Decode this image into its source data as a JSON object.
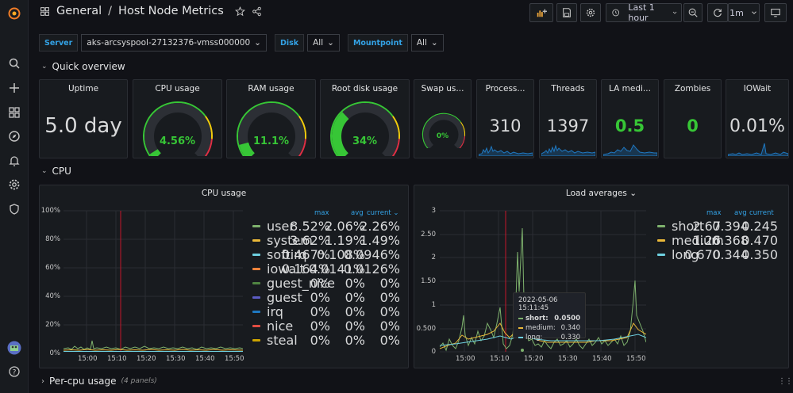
{
  "breadcrumb": {
    "folder": "General",
    "separator": "/",
    "dashboard": "Host Node Metrics"
  },
  "toolbar": {
    "time_range": "Last 1 hour",
    "refresh_interval": "1m"
  },
  "variables": [
    {
      "label": "Server",
      "value": "aks-arcsyspool-27132376-vmss000000"
    },
    {
      "label": "Disk",
      "value": "All"
    },
    {
      "label": "Mountpoint",
      "value": "All"
    }
  ],
  "rows": {
    "quick_overview": "Quick overview",
    "cpu": "CPU",
    "per_cpu": "Per-cpu usage",
    "per_cpu_count": "(4 panels)"
  },
  "stats": {
    "uptime": {
      "title": "Uptime",
      "value": "5.0 day"
    },
    "cpu_usage": {
      "title": "CPU usage",
      "value": "4.56%",
      "fraction": 0.0456
    },
    "ram_usage": {
      "title": "RAM usage",
      "value": "11.1%",
      "fraction": 0.111
    },
    "root_disk": {
      "title": "Root disk usage",
      "value": "34%",
      "fraction": 0.34
    },
    "swap": {
      "title": "Swap us...",
      "value": "0%",
      "fraction": 0
    },
    "processes": {
      "title": "Process...",
      "value": "310"
    },
    "threads": {
      "title": "Threads",
      "value": "1397"
    },
    "la_medium": {
      "title": "LA medi...",
      "value": "0.5"
    },
    "zombies": {
      "title": "Zombies",
      "value": "0"
    },
    "iowait": {
      "title": "IOWait",
      "value": "0.01%"
    }
  },
  "cpu_panel": {
    "title": "CPU usage",
    "legend_headers": {
      "max": "max",
      "avg": "avg",
      "current": "current"
    },
    "legend": [
      {
        "name": "user",
        "color": "#7eb26d",
        "max": "8.52%",
        "avg": "2.06%",
        "current": "2.26%"
      },
      {
        "name": "system",
        "color": "#eab839",
        "max": "3.62%",
        "avg": "1.19%",
        "current": "1.49%"
      },
      {
        "name": "softirq",
        "color": "#6ed0e0",
        "max": "0.467%",
        "avg": "0.108%",
        "current": "0.0946%"
      },
      {
        "name": "iowait",
        "color": "#ef843c",
        "max": "0.164%",
        "avg": "0.0141%",
        "current": "0.0126%"
      },
      {
        "name": "guest_nice",
        "color": "#508642",
        "max": "0%",
        "avg": "0%",
        "current": "0%"
      },
      {
        "name": "guest",
        "color": "#5c5cc4",
        "max": "0%",
        "avg": "0%",
        "current": "0%"
      },
      {
        "name": "irq",
        "color": "#1f78c1",
        "max": "0%",
        "avg": "0%",
        "current": "0%"
      },
      {
        "name": "nice",
        "color": "#e24d42",
        "max": "0%",
        "avg": "0%",
        "current": "0%"
      },
      {
        "name": "steal",
        "color": "#cca300",
        "max": "0%",
        "avg": "0%",
        "current": "0%"
      }
    ],
    "y_ticks": [
      "100%",
      "80%",
      "60%",
      "40%",
      "20%",
      "0%"
    ],
    "x_ticks": [
      "15:00",
      "15:10",
      "15:20",
      "15:30",
      "15:40",
      "15:50"
    ]
  },
  "load_panel": {
    "title": "Load averages",
    "legend_headers": {
      "max": "max",
      "avg": "avg",
      "current": "current"
    },
    "legend": [
      {
        "name": "short",
        "color": "#7eb26d",
        "max": "2.67",
        "avg": "0.394",
        "current": "0.245"
      },
      {
        "name": "medium",
        "color": "#eab839",
        "max": "1.26",
        "avg": "0.368",
        "current": "0.470"
      },
      {
        "name": "long",
        "color": "#6ed0e0",
        "max": "0.670",
        "avg": "0.344",
        "current": "0.350"
      }
    ],
    "y_ticks": [
      "3",
      "2.50",
      "2",
      "1.50",
      "1",
      "0.500",
      "0"
    ],
    "x_ticks": [
      "15:00",
      "15:10",
      "15:20",
      "15:30",
      "15:40",
      "15:50"
    ],
    "tooltip": {
      "time": "2022-05-06 15:11:45",
      "rows": [
        {
          "name": "short:",
          "value": "0.0500",
          "color": "#7eb26d"
        },
        {
          "name": "medium:",
          "value": "0.340",
          "color": "#eab839"
        },
        {
          "name": "long:",
          "value": "0.330",
          "color": "#6ed0e0"
        }
      ]
    }
  }
}
